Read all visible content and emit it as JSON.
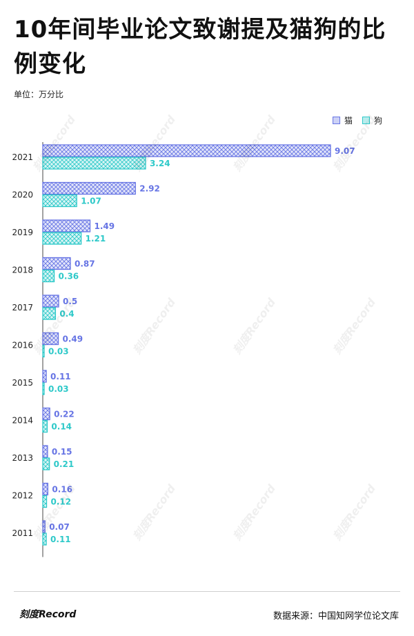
{
  "title": "10年间毕业论文致谢提及猫狗的比例变化",
  "unit": "单位：万分比",
  "legend": [
    {
      "name": "猫",
      "color": "#6674e4"
    },
    {
      "name": "狗",
      "color": "#2ec9c9"
    }
  ],
  "chart_data": {
    "type": "bar",
    "orientation": "horizontal",
    "categories": [
      "2021",
      "2020",
      "2019",
      "2018",
      "2017",
      "2016",
      "2015",
      "2014",
      "2013",
      "2012",
      "2011"
    ],
    "series": [
      {
        "name": "猫",
        "color": "#6674e4",
        "values": [
          9.07,
          2.92,
          1.49,
          0.87,
          0.5,
          0.49,
          0.11,
          0.22,
          0.15,
          0.16,
          0.07
        ]
      },
      {
        "name": "狗",
        "color": "#2ec9c9",
        "values": [
          3.24,
          1.07,
          1.21,
          0.36,
          0.4,
          0.03,
          0.03,
          0.14,
          0.21,
          0.12,
          0.11
        ]
      }
    ],
    "xlim": [
      0,
      9.07
    ],
    "legend_position": "top-right",
    "grid": false
  },
  "watermark": "刻度Record",
  "footer": {
    "brand": "刻度Record",
    "source": "数据来源：中国知网学位论文库"
  }
}
